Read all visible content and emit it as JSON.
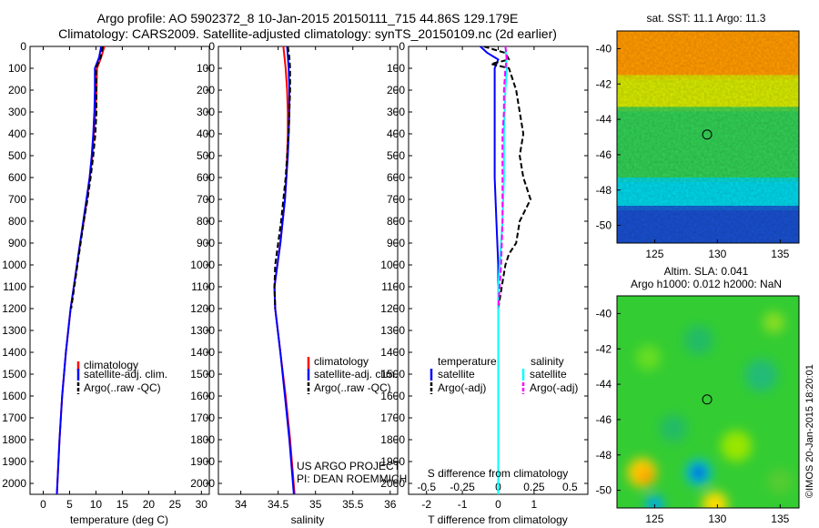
{
  "header": {
    "title_line1": "Argo profile: AO 5902372_8 10-Jan-2015 20150111_715 44.86S 129.179E",
    "title_line2": "Climatology: CARS2009. Satellite-adjusted climatology: synTS_20150109.nc (2d earlier)"
  },
  "colors": {
    "climatology": "#ff0000",
    "satellite": "#0000ff",
    "argo": "#000000",
    "satellite_salinity": "#00ffff",
    "argo_adj_salinity": "#ff00ff"
  },
  "chart_data": [
    {
      "type": "line",
      "xlabel": "temperature (deg C)",
      "ylabel": "",
      "xlim": [
        -2.5,
        31.5
      ],
      "ylim": [
        2050,
        0
      ],
      "xticks": [
        0,
        5,
        10,
        15,
        20,
        25,
        30
      ],
      "yticks": [
        0,
        100,
        200,
        300,
        400,
        500,
        600,
        700,
        800,
        900,
        1000,
        1100,
        1200,
        1300,
        1400,
        1500,
        1600,
        1700,
        1800,
        1900,
        2000
      ],
      "legend": [
        "climatology",
        "satellite-adj. clim.",
        "Argo(..raw -QC)"
      ],
      "legend_position": "lower-right",
      "series": [
        {
          "name": "climatology",
          "color": "#ff0000",
          "style": "solid",
          "y": [
            0,
            50,
            100,
            200,
            300,
            400,
            500,
            600,
            700,
            800,
            900,
            1000,
            1100,
            1200,
            1400,
            1600,
            1800,
            2050
          ],
          "x": [
            11.6,
            11.0,
            10.2,
            10.1,
            9.9,
            9.6,
            9.3,
            8.8,
            8.3,
            7.7,
            7.0,
            6.4,
            5.8,
            5.2,
            4.3,
            3.6,
            3.1,
            2.6
          ]
        },
        {
          "name": "satellite-adj. clim.",
          "color": "#0000ff",
          "style": "solid",
          "y": [
            0,
            50,
            100,
            200,
            300,
            400,
            500,
            600,
            700,
            800,
            900,
            1000,
            1100,
            1200,
            1400,
            1600,
            1800,
            2050
          ],
          "x": [
            11.0,
            10.6,
            9.8,
            9.8,
            9.7,
            9.5,
            9.2,
            8.8,
            8.2,
            7.6,
            7.0,
            6.4,
            5.8,
            5.2,
            4.3,
            3.6,
            3.1,
            2.6
          ]
        },
        {
          "name": "Argo(..raw -QC)",
          "color": "#000000",
          "style": "dashed",
          "y": [
            0,
            50,
            100,
            200,
            300,
            400,
            500,
            600,
            700,
            800,
            900,
            1000,
            1100,
            1200
          ],
          "x": [
            11.3,
            10.9,
            10.0,
            10.1,
            10.1,
            9.9,
            9.5,
            9.0,
            8.4,
            7.7,
            7.1,
            6.5,
            5.9,
            5.3
          ]
        }
      ]
    },
    {
      "type": "line",
      "xlabel": "salinity",
      "xlim": [
        33.7,
        36.1
      ],
      "ylim": [
        2050,
        0
      ],
      "xticks": [
        34,
        34.5,
        35,
        35.5,
        36
      ],
      "legend": [
        "climatology",
        "satellite-adj. clim.",
        "Argo(..raw -QC)"
      ],
      "legend_position": "lower-right",
      "annotation": [
        "US ARGO PROJECT",
        "PI: DEAN ROEMMICH"
      ],
      "series": [
        {
          "name": "climatology",
          "color": "#ff0000",
          "style": "solid",
          "y": [
            0,
            100,
            200,
            300,
            400,
            500,
            600,
            700,
            800,
            900,
            1000,
            1100,
            1200,
            1400,
            1600,
            1800,
            2050
          ],
          "x": [
            34.57,
            34.6,
            34.62,
            34.63,
            34.63,
            34.62,
            34.61,
            34.59,
            34.56,
            34.53,
            34.49,
            34.45,
            34.46,
            34.53,
            34.6,
            34.66,
            34.72
          ]
        },
        {
          "name": "satellite-adj. clim.",
          "color": "#0000ff",
          "style": "solid",
          "y": [
            0,
            100,
            200,
            300,
            400,
            500,
            600,
            700,
            800,
            900,
            1000,
            1100,
            1200,
            1400,
            1600,
            1800,
            2050
          ],
          "x": [
            34.62,
            34.64,
            34.65,
            34.65,
            34.64,
            34.63,
            34.61,
            34.59,
            34.56,
            34.53,
            34.49,
            34.45,
            34.46,
            34.53,
            34.59,
            34.65,
            34.71
          ]
        },
        {
          "name": "Argo(..raw -QC)",
          "color": "#000000",
          "style": "dashed",
          "y": [
            0,
            50,
            100,
            200,
            300,
            400,
            500,
            600,
            700,
            800,
            900,
            1000,
            1100,
            1200
          ],
          "x": [
            34.63,
            34.65,
            34.66,
            34.66,
            34.65,
            34.64,
            34.62,
            34.6,
            34.57,
            34.54,
            34.5,
            34.46,
            34.45,
            34.46
          ]
        }
      ]
    },
    {
      "type": "line",
      "xlabel": "T difference from climatology",
      "x2label": "S difference from climatology",
      "xlim": [
        -2.5,
        2.5
      ],
      "x2lim": [
        -0.625,
        0.625
      ],
      "ylim": [
        2050,
        0
      ],
      "xticks": [
        -2,
        -1,
        0,
        1
      ],
      "x2ticks": [
        -0.5,
        -0.25,
        0,
        0.25,
        0.5
      ],
      "legend": [
        "temperature",
        "satellite",
        "Argo(-adj)",
        "salinity",
        "satellite",
        "Argo(-adj)"
      ],
      "legend_position": "lower-center",
      "series": [
        {
          "name": "temperature satellite",
          "color": "#0000ff",
          "style": "solid",
          "y": [
            0,
            30,
            60,
            100,
            150,
            200,
            300,
            400,
            600,
            800,
            1000,
            1100,
            1200,
            1400,
            1600,
            2050
          ],
          "x": [
            -0.5,
            -0.3,
            0.0,
            -0.1,
            -0.1,
            -0.1,
            -0.1,
            -0.1,
            -0.1,
            -0.05,
            0,
            0,
            0,
            0,
            0,
            0
          ]
        },
        {
          "name": "temperature Argo(-adj)",
          "color": "#000000",
          "style": "dashed",
          "y": [
            0,
            30,
            60,
            80,
            100,
            150,
            200,
            300,
            400,
            500,
            600,
            700,
            800,
            900,
            950,
            1000,
            1100,
            1200
          ],
          "x": [
            -0.4,
            0.2,
            0.3,
            -0.2,
            0.3,
            0.4,
            0.5,
            0.6,
            0.7,
            0.6,
            0.7,
            0.9,
            0.6,
            0.5,
            0.3,
            0.2,
            0.1,
            0.0
          ]
        },
        {
          "name": "salinity satellite",
          "color": "#00ffff",
          "style": "solid",
          "y": [
            0,
            100,
            200,
            400,
            600,
            800,
            1000,
            1100,
            1200,
            1300,
            1400,
            2050
          ],
          "x": [
            0.05,
            0.06,
            0.05,
            0.04,
            0.04,
            0.03,
            0.01,
            0.0,
            0.0,
            0.0,
            0.0,
            0.0
          ]
        },
        {
          "name": "salinity Argo(-adj)",
          "color": "#ff00ff",
          "style": "dashed",
          "y": [
            0,
            50,
            100,
            200,
            300,
            400,
            600,
            800,
            1000,
            1100,
            1200
          ],
          "x": [
            0.05,
            0.06,
            0.05,
            0.04,
            0.04,
            0.03,
            0.03,
            0.03,
            0.02,
            0.01,
            0.0
          ]
        }
      ]
    },
    {
      "type": "heatmap",
      "title": "sat. SST: 11.1  Argo: 11.3",
      "xlim": [
        122,
        136.5
      ],
      "ylim": [
        -51,
        -39
      ],
      "xticks": [
        125,
        130,
        135
      ],
      "yticks": [
        -40,
        -42,
        -44,
        -46,
        -48,
        -50
      ],
      "colormap": "jet",
      "marker": {
        "lon": 129.18,
        "lat": -44.86
      },
      "bands": [
        {
          "lat_from": -39,
          "lat_to": -41.8,
          "color": "#ff9900"
        },
        {
          "lat_from": -41.8,
          "lat_to": -43.6,
          "color": "#d4e600"
        },
        {
          "lat_from": -43.6,
          "lat_to": -47.6,
          "color": "#33cc55"
        },
        {
          "lat_from": -47.6,
          "lat_to": -49.2,
          "color": "#00d4e6"
        },
        {
          "lat_from": -49.2,
          "lat_to": -51,
          "color": "#1a4fcc"
        }
      ]
    },
    {
      "type": "heatmap",
      "title_line1": "Altim. SLA: 0.041",
      "title_line2": "Argo h1000: 0.012 h2000: NaN",
      "xlim": [
        122,
        136.5
      ],
      "ylim": [
        -51,
        -39
      ],
      "xticks": [
        125,
        130,
        135
      ],
      "yticks": [
        -40,
        -42,
        -44,
        -46,
        -48,
        -50
      ],
      "colormap": "jet",
      "base_color": "#33cc33",
      "marker": {
        "lon": 129.18,
        "lat": -44.86
      }
    }
  ],
  "side_label": "©IMOS 20-Jan-2015 18:20:01"
}
